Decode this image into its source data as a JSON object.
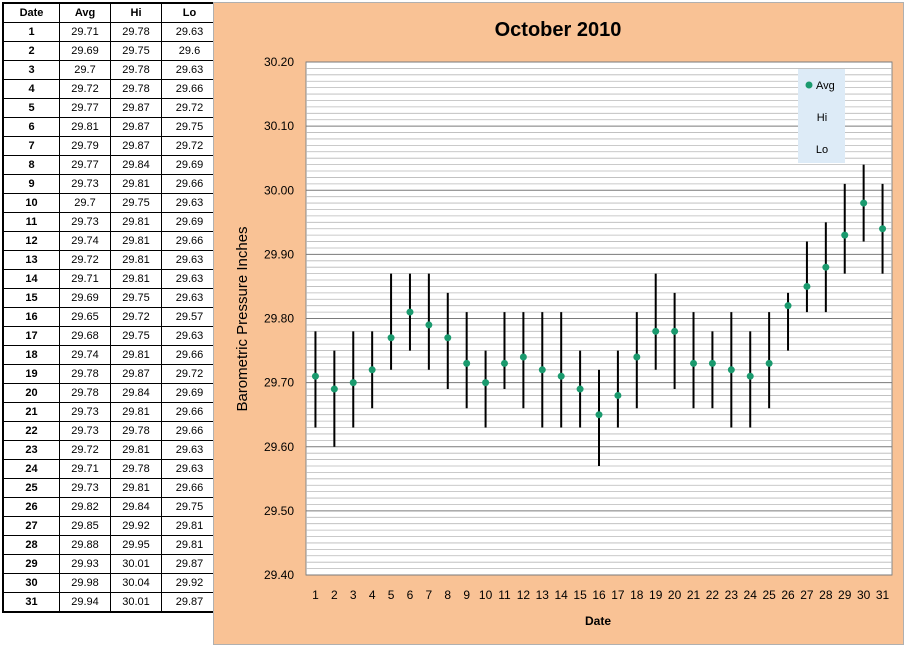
{
  "table": {
    "headers": [
      "Date",
      "Avg",
      "Hi",
      "Lo"
    ],
    "rows": [
      [
        "1",
        "29.71",
        "29.78",
        "29.63"
      ],
      [
        "2",
        "29.69",
        "29.75",
        "29.6"
      ],
      [
        "3",
        "29.7",
        "29.78",
        "29.63"
      ],
      [
        "4",
        "29.72",
        "29.78",
        "29.66"
      ],
      [
        "5",
        "29.77",
        "29.87",
        "29.72"
      ],
      [
        "6",
        "29.81",
        "29.87",
        "29.75"
      ],
      [
        "7",
        "29.79",
        "29.87",
        "29.72"
      ],
      [
        "8",
        "29.77",
        "29.84",
        "29.69"
      ],
      [
        "9",
        "29.73",
        "29.81",
        "29.66"
      ],
      [
        "10",
        "29.7",
        "29.75",
        "29.63"
      ],
      [
        "11",
        "29.73",
        "29.81",
        "29.69"
      ],
      [
        "12",
        "29.74",
        "29.81",
        "29.66"
      ],
      [
        "13",
        "29.72",
        "29.81",
        "29.63"
      ],
      [
        "14",
        "29.71",
        "29.81",
        "29.63"
      ],
      [
        "15",
        "29.69",
        "29.75",
        "29.63"
      ],
      [
        "16",
        "29.65",
        "29.72",
        "29.57"
      ],
      [
        "17",
        "29.68",
        "29.75",
        "29.63"
      ],
      [
        "18",
        "29.74",
        "29.81",
        "29.66"
      ],
      [
        "19",
        "29.78",
        "29.87",
        "29.72"
      ],
      [
        "20",
        "29.78",
        "29.84",
        "29.69"
      ],
      [
        "21",
        "29.73",
        "29.81",
        "29.66"
      ],
      [
        "22",
        "29.73",
        "29.78",
        "29.66"
      ],
      [
        "23",
        "29.72",
        "29.81",
        "29.63"
      ],
      [
        "24",
        "29.71",
        "29.78",
        "29.63"
      ],
      [
        "25",
        "29.73",
        "29.81",
        "29.66"
      ],
      [
        "26",
        "29.82",
        "29.84",
        "29.75"
      ],
      [
        "27",
        "29.85",
        "29.92",
        "29.81"
      ],
      [
        "28",
        "29.88",
        "29.95",
        "29.81"
      ],
      [
        "29",
        "29.93",
        "30.01",
        "29.87"
      ],
      [
        "30",
        "29.98",
        "30.04",
        "29.92"
      ],
      [
        "31",
        "29.94",
        "30.01",
        "29.87"
      ]
    ]
  },
  "chart_data": {
    "type": "scatter",
    "title": "October 2010",
    "xlabel": "Date",
    "ylabel": "Barometric Pressure Inches",
    "x": [
      1,
      2,
      3,
      4,
      5,
      6,
      7,
      8,
      9,
      10,
      11,
      12,
      13,
      14,
      15,
      16,
      17,
      18,
      19,
      20,
      21,
      22,
      23,
      24,
      25,
      26,
      27,
      28,
      29,
      30,
      31
    ],
    "ylim": [
      29.4,
      30.2
    ],
    "yticks": [
      "30.20",
      "30.10",
      "30.00",
      "29.90",
      "29.80",
      "29.70",
      "29.60",
      "29.50",
      "29.40"
    ],
    "series": [
      {
        "name": "Avg",
        "color": "#1a9a6e",
        "values": [
          29.71,
          29.69,
          29.7,
          29.72,
          29.77,
          29.81,
          29.79,
          29.77,
          29.73,
          29.7,
          29.73,
          29.74,
          29.72,
          29.71,
          29.69,
          29.65,
          29.68,
          29.74,
          29.78,
          29.78,
          29.73,
          29.73,
          29.72,
          29.71,
          29.73,
          29.82,
          29.85,
          29.88,
          29.93,
          29.98,
          29.94
        ]
      },
      {
        "name": "Hi",
        "color": "#000000",
        "values": [
          29.78,
          29.75,
          29.78,
          29.78,
          29.87,
          29.87,
          29.87,
          29.84,
          29.81,
          29.75,
          29.81,
          29.81,
          29.81,
          29.81,
          29.75,
          29.72,
          29.75,
          29.81,
          29.87,
          29.84,
          29.81,
          29.78,
          29.81,
          29.78,
          29.81,
          29.84,
          29.92,
          29.95,
          30.01,
          30.04,
          30.01
        ]
      },
      {
        "name": "Lo",
        "color": "#000000",
        "values": [
          29.63,
          29.6,
          29.63,
          29.66,
          29.72,
          29.75,
          29.72,
          29.69,
          29.66,
          29.63,
          29.69,
          29.66,
          29.63,
          29.63,
          29.63,
          29.57,
          29.63,
          29.66,
          29.72,
          29.69,
          29.66,
          29.66,
          29.63,
          29.63,
          29.66,
          29.75,
          29.81,
          29.81,
          29.87,
          29.92,
          29.87
        ]
      }
    ],
    "grid": true,
    "legend": "top-right"
  }
}
